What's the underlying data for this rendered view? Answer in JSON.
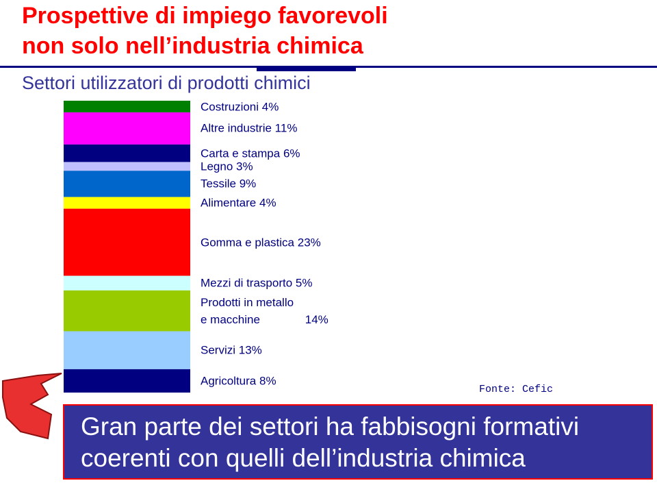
{
  "slide": {
    "title_lines": [
      "Prospettive di impiego favorevoli",
      "non solo nell’industria chimica"
    ],
    "source": "Fonte: Cefic",
    "callout_lines": [
      "Gran parte dei settori ha fabbisogni formativi",
      "coerenti con quelli dell’industria chimica"
    ]
  },
  "chart_data": {
    "type": "stacked-bar",
    "title": "Settori utilizzatori di prodotti chimici",
    "ylim": [
      0,
      100
    ],
    "series": [
      {
        "name": "Costruzioni",
        "color": "#008000",
        "values": [
          4
        ],
        "value_labels": [
          "4%"
        ]
      },
      {
        "name": "Altre industrie",
        "color": "#ff00ff",
        "values": [
          11
        ],
        "value_labels": [
          "11%"
        ]
      },
      {
        "name": "Carta e stampa",
        "color": "#000080",
        "values": [
          6
        ],
        "value_labels": [
          "6%"
        ]
      },
      {
        "name": "Legno",
        "color": "#c0c0ff",
        "values": [
          3
        ],
        "value_labels": [
          "3%"
        ]
      },
      {
        "name": "Tessile",
        "color": "#0066cc",
        "values": [
          9
        ],
        "value_labels": [
          "9%"
        ]
      },
      {
        "name": "Alimentare",
        "color": "#ffff00",
        "values": [
          4
        ],
        "value_labels": [
          "4%"
        ]
      },
      {
        "name": "Gomma e plastica",
        "color": "#ff0000",
        "values": [
          23
        ],
        "value_labels": [
          "23%"
        ]
      },
      {
        "name": "Mezzi di trasporto",
        "color": "#ccffff",
        "values": [
          5
        ],
        "value_labels": [
          "5%"
        ]
      },
      {
        "name": "Prodotti in metallo e macchine",
        "color": "#99cc00",
        "values": [
          14
        ],
        "value_labels": [
          "14%"
        ]
      },
      {
        "name": "Servizi",
        "color": "#99ccff",
        "values": [
          13
        ],
        "value_labels": [
          "13%"
        ]
      },
      {
        "name": "Agricoltura",
        "color": "#000080",
        "values": [
          8
        ],
        "value_labels": [
          "8%"
        ]
      }
    ]
  }
}
